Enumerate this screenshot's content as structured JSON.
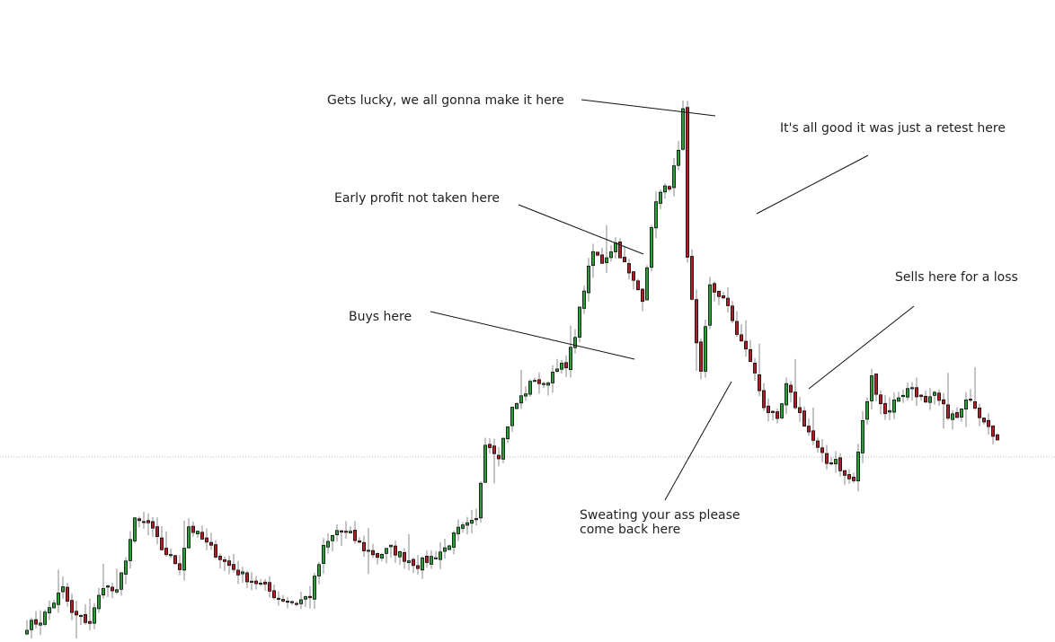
{
  "chart_data": {
    "type": "candlestick",
    "xlabel": "",
    "ylabel": "",
    "grid": false,
    "ylim": [
      0,
      711
    ],
    "colors": {
      "up": "#2e9e3a",
      "down": "#b21e28",
      "body_outline": "#111111",
      "wick": "#888888",
      "reference_line": "#bbbbbb",
      "annotation_line": "#111111"
    },
    "reference_level": 202,
    "anchors": [
      [
        0,
        14
      ],
      [
        3,
        20
      ],
      [
        8,
        55
      ],
      [
        10,
        27
      ],
      [
        14,
        18
      ],
      [
        17,
        60
      ],
      [
        20,
        50
      ],
      [
        24,
        130
      ],
      [
        27,
        128
      ],
      [
        30,
        100
      ],
      [
        34,
        80
      ],
      [
        36,
        125
      ],
      [
        40,
        105
      ],
      [
        44,
        85
      ],
      [
        48,
        70
      ],
      [
        52,
        60
      ],
      [
        56,
        45
      ],
      [
        60,
        40
      ],
      [
        63,
        48
      ],
      [
        66,
        100
      ],
      [
        69,
        120
      ],
      [
        72,
        115
      ],
      [
        75,
        100
      ],
      [
        78,
        92
      ],
      [
        81,
        100
      ],
      [
        84,
        90
      ],
      [
        87,
        82
      ],
      [
        90,
        90
      ],
      [
        93,
        100
      ],
      [
        96,
        120
      ],
      [
        100,
        130
      ],
      [
        102,
        220
      ],
      [
        105,
        205
      ],
      [
        108,
        255
      ],
      [
        111,
        275
      ],
      [
        113,
        290
      ],
      [
        115,
        280
      ],
      [
        118,
        305
      ],
      [
        120,
        300
      ],
      [
        122,
        340
      ],
      [
        124,
        390
      ],
      [
        126,
        430
      ],
      [
        128,
        420
      ],
      [
        131,
        440
      ],
      [
        134,
        405
      ],
      [
        137,
        380
      ],
      [
        140,
        490
      ],
      [
        143,
        505
      ],
      [
        145,
        540
      ],
      [
        146,
        585
      ],
      [
        147,
        420
      ],
      [
        149,
        330
      ],
      [
        150,
        300
      ],
      [
        152,
        390
      ],
      [
        155,
        380
      ],
      [
        158,
        340
      ],
      [
        161,
        310
      ],
      [
        164,
        260
      ],
      [
        167,
        240
      ],
      [
        169,
        280
      ],
      [
        172,
        250
      ],
      [
        174,
        230
      ],
      [
        176,
        210
      ],
      [
        178,
        195
      ],
      [
        180,
        200
      ],
      [
        182,
        180
      ],
      [
        184,
        175
      ],
      [
        186,
        240
      ],
      [
        188,
        290
      ],
      [
        191,
        250
      ],
      [
        194,
        270
      ],
      [
        197,
        280
      ],
      [
        200,
        260
      ],
      [
        202,
        270
      ],
      [
        205,
        250
      ],
      [
        207,
        245
      ],
      [
        210,
        270
      ],
      [
        212,
        250
      ],
      [
        214,
        240
      ],
      [
        216,
        220
      ]
    ],
    "annotations": [
      {
        "text": "Gets lucky, we all gonna make it here"
      },
      {
        "text": "It's all good it was just a retest here"
      },
      {
        "text": "Early profit not taken here"
      },
      {
        "text": "Sells here for a loss"
      },
      {
        "text": "Buys here"
      },
      {
        "lines": [
          "Sweating your ass please",
          "come back here"
        ]
      }
    ]
  }
}
